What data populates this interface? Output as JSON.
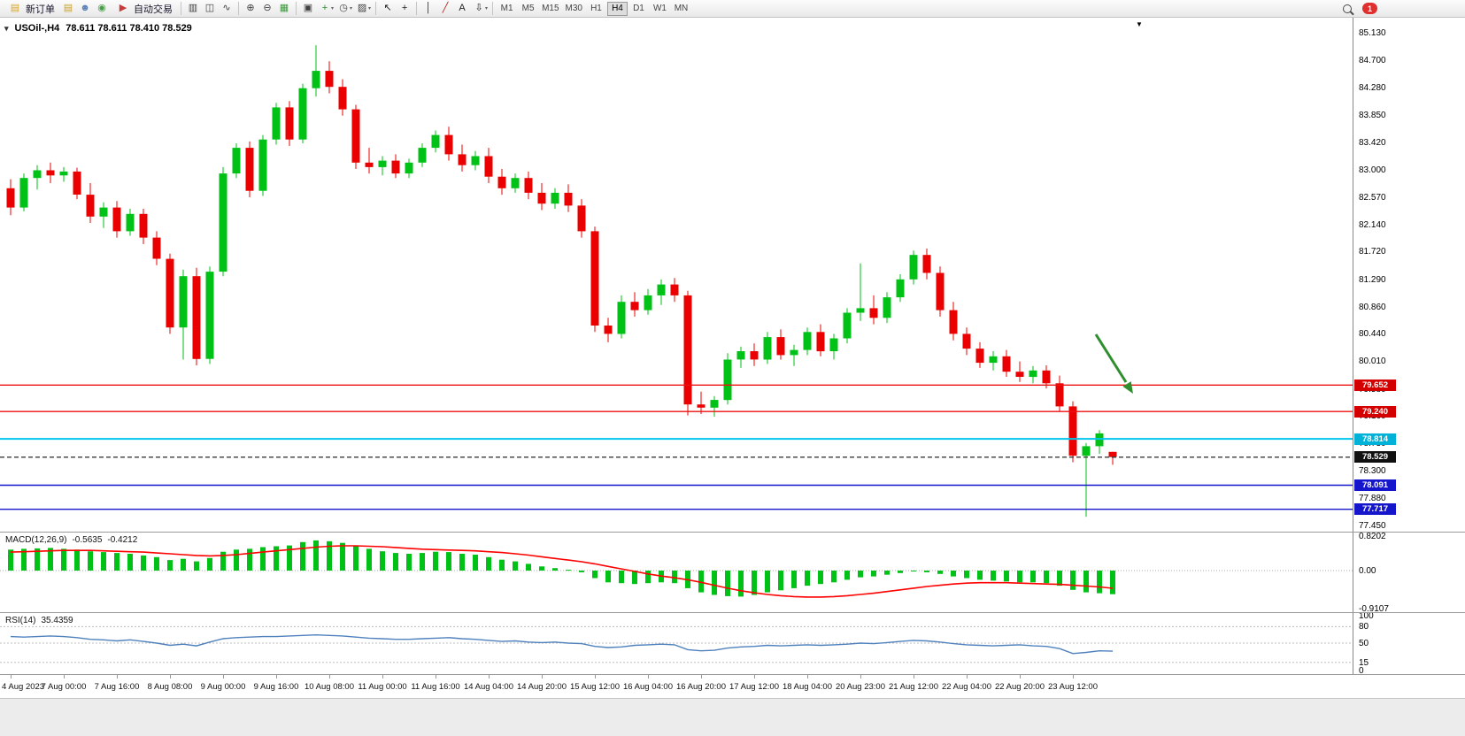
{
  "toolbar": {
    "new_order_label": "新订单",
    "autotrade_label": "自动交易",
    "timeframes": [
      "M1",
      "M5",
      "M15",
      "M30",
      "H1",
      "H4",
      "D1",
      "W1",
      "MN"
    ],
    "active_timeframe": "H4",
    "notification_count": "1",
    "items": [
      {
        "t": "btn",
        "name": "new-order-button",
        "g": "▤",
        "c": "#d8a62a",
        "label_key": "new_order_label"
      },
      {
        "t": "icon",
        "name": "history-center-icon",
        "g": "▤",
        "c": "#caa02a"
      },
      {
        "t": "icon",
        "name": "profile-icon",
        "g": "☻",
        "c": "#5b7fb4"
      },
      {
        "t": "icon",
        "name": "community-icon",
        "g": "◉",
        "c": "#4a9e4a"
      },
      {
        "t": "btn",
        "name": "autotrade-button",
        "g": "▶",
        "c": "#c93a3a",
        "label_key": "autotrade_label"
      },
      {
        "t": "sep"
      },
      {
        "t": "icon",
        "name": "bar-chart-icon",
        "g": "▥",
        "c": "#404040"
      },
      {
        "t": "icon",
        "name": "candle-chart-icon",
        "g": "◫",
        "c": "#404040"
      },
      {
        "t": "icon",
        "name": "line-chart-icon",
        "g": "∿",
        "c": "#404040"
      },
      {
        "t": "sep"
      },
      {
        "t": "icon",
        "name": "zoom-in-icon",
        "g": "⊕",
        "c": "#404040"
      },
      {
        "t": "icon",
        "name": "zoom-out-icon",
        "g": "⊖",
        "c": "#404040"
      },
      {
        "t": "icon",
        "name": "grid-icon",
        "g": "▦",
        "c": "#3a9a3a"
      },
      {
        "t": "sep"
      },
      {
        "t": "icon",
        "name": "tile-windows-icon",
        "g": "▣",
        "c": "#404040"
      },
      {
        "t": "icon",
        "name": "indicators-icon",
        "g": "+",
        "c": "#2e8b2e",
        "caret": true
      },
      {
        "t": "icon",
        "name": "clock-icon",
        "g": "◷",
        "c": "#404040",
        "caret": true
      },
      {
        "t": "icon",
        "name": "template-icon",
        "g": "▨",
        "c": "#404040",
        "caret": true
      },
      {
        "t": "sep"
      },
      {
        "t": "icon",
        "name": "cursor-icon",
        "g": "↖",
        "c": "#202020"
      },
      {
        "t": "icon",
        "name": "crosshair-icon",
        "g": "+",
        "c": "#202020"
      },
      {
        "t": "sep"
      },
      {
        "t": "icon",
        "name": "vertical-line-icon",
        "g": "│",
        "c": "#202020"
      },
      {
        "t": "icon",
        "name": "trendline-icon",
        "g": "╱",
        "c": "#b22222"
      },
      {
        "t": "icon",
        "name": "text-label-icon",
        "g": "A",
        "c": "#202020"
      },
      {
        "t": "icon",
        "name": "arrows-icon",
        "g": "⇩",
        "c": "#202020",
        "caret": true
      },
      {
        "t": "sep"
      },
      {
        "t": "tfs"
      },
      {
        "t": "spacer"
      },
      {
        "t": "mag",
        "name": "search-icon"
      },
      {
        "t": "badge",
        "name": "notification-badge"
      },
      {
        "t": "gap"
      }
    ]
  },
  "chart": {
    "one_click_icon": "▾",
    "symbol_period": "USOil-,H4",
    "ohlc_text": "78.611 78.611 78.410 78.529",
    "shift_marker": "▼",
    "colors": {
      "up": "#00c116",
      "down": "#ea0000",
      "bg": "#ffffff"
    }
  },
  "price_axis": {
    "ticks": [
      "85.130",
      "84.700",
      "84.280",
      "83.850",
      "83.420",
      "83.000",
      "82.570",
      "82.140",
      "81.720",
      "81.290",
      "80.860",
      "80.440",
      "80.010",
      "79.580",
      "79.160",
      "78.730",
      "78.300",
      "77.880",
      "77.450"
    ]
  },
  "hlines": [
    {
      "price": 79.652,
      "color": "#ee1111",
      "style": "solid",
      "badge": "79.652",
      "badge_color": "#d40000"
    },
    {
      "price": 79.24,
      "color": "#ee1111",
      "style": "solid",
      "badge": "79.240",
      "badge_color": "#d40000"
    },
    {
      "price": 78.814,
      "color": "#00c6ec",
      "style": "solid",
      "badge": "78.814",
      "badge_color": "#00b2d8"
    },
    {
      "price": 78.529,
      "color": "#3c3c3c",
      "style": "dashed",
      "badge": "78.529",
      "badge_color": "#101010"
    },
    {
      "price": 78.091,
      "color": "#1515cc",
      "style": "solid",
      "badge": "78.091",
      "badge_color": "#1515cc"
    },
    {
      "price": 77.717,
      "color": "#1515cc",
      "style": "solid",
      "badge": "77.717",
      "badge_color": "#1515cc"
    }
  ],
  "candles": [
    [
      82.72,
      82.86,
      82.3,
      82.42
    ],
    [
      82.42,
      82.95,
      82.36,
      82.88
    ],
    [
      82.88,
      83.08,
      82.7,
      83.0
    ],
    [
      83.0,
      83.12,
      82.8,
      82.92
    ],
    [
      82.92,
      83.05,
      82.82,
      82.98
    ],
    [
      82.98,
      83.04,
      82.55,
      82.62
    ],
    [
      82.62,
      82.8,
      82.18,
      82.28
    ],
    [
      82.28,
      82.5,
      82.1,
      82.42
    ],
    [
      82.42,
      82.52,
      81.95,
      82.05
    ],
    [
      82.05,
      82.4,
      81.98,
      82.32
    ],
    [
      82.32,
      82.4,
      81.85,
      81.95
    ],
    [
      81.95,
      82.05,
      81.52,
      81.62
    ],
    [
      81.62,
      81.7,
      80.45,
      80.55
    ],
    [
      80.55,
      81.45,
      80.05,
      81.35
    ],
    [
      81.35,
      81.48,
      79.96,
      80.06
    ],
    [
      80.06,
      81.5,
      79.98,
      81.42
    ],
    [
      81.42,
      83.05,
      81.35,
      82.95
    ],
    [
      82.95,
      83.42,
      82.88,
      83.35
    ],
    [
      83.35,
      83.45,
      82.58,
      82.68
    ],
    [
      82.68,
      83.55,
      82.6,
      83.48
    ],
    [
      83.48,
      84.05,
      83.4,
      83.98
    ],
    [
      83.98,
      84.08,
      83.38,
      83.48
    ],
    [
      83.48,
      84.35,
      83.42,
      84.28
    ],
    [
      84.28,
      84.95,
      84.15,
      84.55
    ],
    [
      84.55,
      84.7,
      84.2,
      84.3
    ],
    [
      84.3,
      84.42,
      83.85,
      83.95
    ],
    [
      83.95,
      84.02,
      83.02,
      83.12
    ],
    [
      83.12,
      83.35,
      82.95,
      83.05
    ],
    [
      83.05,
      83.22,
      82.92,
      83.15
    ],
    [
      83.15,
      83.25,
      82.88,
      82.95
    ],
    [
      82.95,
      83.18,
      82.88,
      83.12
    ],
    [
      83.12,
      83.42,
      83.05,
      83.35
    ],
    [
      83.35,
      83.62,
      83.28,
      83.55
    ],
    [
      83.55,
      83.68,
      83.15,
      83.25
    ],
    [
      83.25,
      83.4,
      82.98,
      83.08
    ],
    [
      83.08,
      83.3,
      83.0,
      83.22
    ],
    [
      83.22,
      83.35,
      82.8,
      82.9
    ],
    [
      82.9,
      83.02,
      82.62,
      82.72
    ],
    [
      82.72,
      82.95,
      82.65,
      82.88
    ],
    [
      82.88,
      82.98,
      82.55,
      82.65
    ],
    [
      82.65,
      82.8,
      82.38,
      82.48
    ],
    [
      82.48,
      82.72,
      82.4,
      82.65
    ],
    [
      82.65,
      82.78,
      82.35,
      82.45
    ],
    [
      82.45,
      82.55,
      81.95,
      82.05
    ],
    [
      82.05,
      82.12,
      80.48,
      80.58
    ],
    [
      80.58,
      80.7,
      80.32,
      80.45
    ],
    [
      80.45,
      81.05,
      80.38,
      80.95
    ],
    [
      80.95,
      81.1,
      80.72,
      80.82
    ],
    [
      80.82,
      81.15,
      80.75,
      81.05
    ],
    [
      81.05,
      81.3,
      80.9,
      81.22
    ],
    [
      81.22,
      81.32,
      80.95,
      81.05
    ],
    [
      81.05,
      81.12,
      79.18,
      79.35
    ],
    [
      79.35,
      79.55,
      79.2,
      79.3
    ],
    [
      79.3,
      79.48,
      79.16,
      79.42
    ],
    [
      79.42,
      80.15,
      79.35,
      80.05
    ],
    [
      80.05,
      80.25,
      79.92,
      80.18
    ],
    [
      80.18,
      80.3,
      79.95,
      80.05
    ],
    [
      80.05,
      80.48,
      79.98,
      80.4
    ],
    [
      80.4,
      80.52,
      80.05,
      80.12
    ],
    [
      80.12,
      80.28,
      79.95,
      80.2
    ],
    [
      80.2,
      80.55,
      80.12,
      80.48
    ],
    [
      80.48,
      80.6,
      80.1,
      80.18
    ],
    [
      80.18,
      80.45,
      80.05,
      80.38
    ],
    [
      80.38,
      80.85,
      80.3,
      80.78
    ],
    [
      80.78,
      81.55,
      80.65,
      80.85
    ],
    [
      80.85,
      81.05,
      80.6,
      80.7
    ],
    [
      80.7,
      81.1,
      80.62,
      81.02
    ],
    [
      81.02,
      81.38,
      80.95,
      81.3
    ],
    [
      81.3,
      81.75,
      81.22,
      81.68
    ],
    [
      81.68,
      81.78,
      81.3,
      81.4
    ],
    [
      81.4,
      81.5,
      80.72,
      80.82
    ],
    [
      80.82,
      80.95,
      80.35,
      80.45
    ],
    [
      80.45,
      80.55,
      80.12,
      80.22
    ],
    [
      80.22,
      80.32,
      79.92,
      80.0
    ],
    [
      80.0,
      80.18,
      79.88,
      80.1
    ],
    [
      80.1,
      80.2,
      79.78,
      79.86
    ],
    [
      79.86,
      80.02,
      79.7,
      79.78
    ],
    [
      79.78,
      79.95,
      79.68,
      79.88
    ],
    [
      79.88,
      79.96,
      79.6,
      79.68
    ],
    [
      79.68,
      79.8,
      79.25,
      79.32
    ],
    [
      79.32,
      79.4,
      78.45,
      78.55
    ],
    [
      78.55,
      78.75,
      77.6,
      78.7
    ],
    [
      78.7,
      78.95,
      78.58,
      78.9
    ],
    [
      78.611,
      78.611,
      78.41,
      78.529
    ]
  ],
  "macd": {
    "label": "MACD(12,26,9)",
    "main_value": "-0.5635",
    "signal_value": "-0.4212",
    "hist_color": "#00c116",
    "signal_color": "#ff0000",
    "axis": [
      "0.8202",
      "0.00",
      "-0.9107"
    ],
    "hist": [
      0.5,
      0.52,
      0.53,
      0.54,
      0.52,
      0.5,
      0.46,
      0.44,
      0.42,
      0.4,
      0.36,
      0.32,
      0.25,
      0.28,
      0.22,
      0.3,
      0.45,
      0.5,
      0.52,
      0.56,
      0.58,
      0.6,
      0.68,
      0.72,
      0.7,
      0.66,
      0.58,
      0.52,
      0.46,
      0.42,
      0.4,
      0.42,
      0.45,
      0.44,
      0.4,
      0.38,
      0.32,
      0.26,
      0.22,
      0.16,
      0.1,
      0.06,
      0.02,
      -0.04,
      -0.18,
      -0.28,
      -0.3,
      -0.32,
      -0.3,
      -0.28,
      -0.3,
      -0.42,
      -0.52,
      -0.58,
      -0.61,
      -0.62,
      -0.58,
      -0.52,
      -0.47,
      -0.42,
      -0.36,
      -0.32,
      -0.28,
      -0.22,
      -0.16,
      -0.14,
      -0.1,
      -0.06,
      -0.02,
      -0.04,
      -0.08,
      -0.14,
      -0.18,
      -0.22,
      -0.24,
      -0.26,
      -0.28,
      -0.28,
      -0.3,
      -0.36,
      -0.46,
      -0.52,
      -0.54,
      -0.5635
    ],
    "signal": [
      0.44,
      0.45,
      0.46,
      0.47,
      0.48,
      0.48,
      0.48,
      0.47,
      0.46,
      0.45,
      0.44,
      0.42,
      0.4,
      0.38,
      0.36,
      0.35,
      0.36,
      0.38,
      0.41,
      0.44,
      0.47,
      0.5,
      0.53,
      0.56,
      0.58,
      0.59,
      0.59,
      0.58,
      0.57,
      0.55,
      0.53,
      0.51,
      0.5,
      0.49,
      0.48,
      0.47,
      0.45,
      0.43,
      0.4,
      0.37,
      0.33,
      0.29,
      0.25,
      0.21,
      0.16,
      0.1,
      0.04,
      -0.02,
      -0.08,
      -0.13,
      -0.17,
      -0.22,
      -0.28,
      -0.35,
      -0.42,
      -0.48,
      -0.53,
      -0.57,
      -0.6,
      -0.62,
      -0.63,
      -0.63,
      -0.62,
      -0.6,
      -0.57,
      -0.54,
      -0.5,
      -0.46,
      -0.42,
      -0.38,
      -0.35,
      -0.32,
      -0.3,
      -0.29,
      -0.29,
      -0.29,
      -0.3,
      -0.31,
      -0.32,
      -0.33,
      -0.35,
      -0.37,
      -0.39,
      -0.4212
    ]
  },
  "rsi": {
    "label": "RSI(14)",
    "value": "35.4359",
    "line_color": "#4f81bd",
    "axis": [
      "100",
      "80",
      "50",
      "15",
      "0"
    ],
    "level_lines": [
      80,
      50,
      15
    ],
    "values": [
      62,
      61,
      62,
      63,
      62,
      60,
      57,
      56,
      54,
      56,
      53,
      50,
      46,
      48,
      45,
      52,
      58,
      60,
      61,
      62,
      62,
      63,
      64,
      65,
      64,
      63,
      61,
      59,
      58,
      57,
      57,
      58,
      59,
      60,
      58,
      57,
      55,
      53,
      54,
      52,
      51,
      52,
      50,
      49,
      44,
      42,
      43,
      46,
      47,
      48,
      47,
      38,
      36,
      37,
      41,
      43,
      44,
      46,
      45,
      46,
      47,
      46,
      47,
      48,
      50,
      49,
      51,
      53,
      55,
      54,
      52,
      49,
      47,
      46,
      45,
      46,
      47,
      45,
      44,
      40,
      31,
      33,
      36,
      35.4
    ]
  },
  "time_axis": {
    "labels": [
      "4 Aug 2023",
      "7 Aug 00:00",
      "7 Aug 16:00",
      "8 Aug 08:00",
      "9 Aug 00:00",
      "9 Aug 16:00",
      "10 Aug 08:00",
      "11 Aug 00:00",
      "11 Aug 16:00",
      "14 Aug 04:00",
      "14 Aug 20:00",
      "15 Aug 12:00",
      "16 Aug 04:00",
      "16 Aug 20:00",
      "17 Aug 12:00",
      "18 Aug 04:00",
      "20 Aug 23:00",
      "21 Aug 12:00",
      "22 Aug 04:00",
      "22 Aug 20:00",
      "23 Aug 12:00"
    ]
  },
  "annotation": {
    "type": "arrow",
    "color": "#2f8f2f"
  }
}
